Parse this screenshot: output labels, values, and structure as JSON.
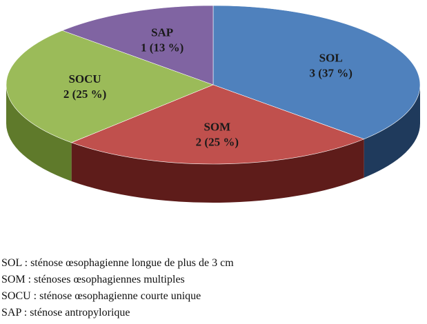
{
  "chart_data": {
    "type": "pie",
    "style": "3d",
    "slices": [
      {
        "label": "SOL",
        "count": 3,
        "percent": 37,
        "value_text": "3 (37 %)",
        "color": "#4F81BD",
        "side_color": "#1F3A5C"
      },
      {
        "label": "SOM",
        "count": 2,
        "percent": 25,
        "value_text": "2 (25 %)",
        "color": "#C0504D",
        "side_color": "#5E1C1A"
      },
      {
        "label": "SOCU",
        "count": 2,
        "percent": 25,
        "value_text": "2 (25 %)",
        "color": "#9BBB59",
        "side_color": "#5F7A2B"
      },
      {
        "label": "SAP",
        "count": 1,
        "percent": 13,
        "value_text": "1 (13 %)",
        "color": "#8064A2",
        "side_color": "#4A3565"
      }
    ]
  },
  "notes": [
    "SOL : sténose œsophagienne longue de plus de 3 cm",
    "SOM : sténoses œsophagiennes multiples",
    "SOCU : sténose œsophagienne courte unique",
    "SAP : sténose antropylorique"
  ]
}
